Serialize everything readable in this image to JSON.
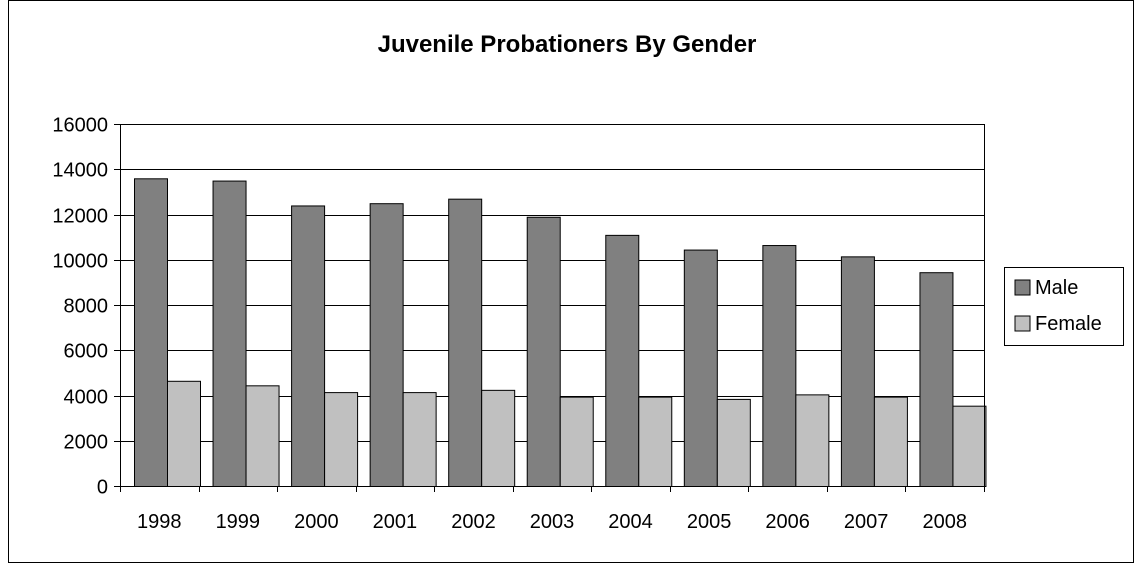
{
  "chart_data": {
    "type": "bar",
    "title": "Juvenile Probationers By Gender",
    "xlabel": "",
    "ylabel": "",
    "categories": [
      "1998",
      "1999",
      "2000",
      "2001",
      "2002",
      "2003",
      "2004",
      "2005",
      "2006",
      "2007",
      "2008"
    ],
    "series": [
      {
        "name": "Male",
        "color": "#808080",
        "values": [
          13600,
          13500,
          12400,
          12500,
          12700,
          11900,
          11100,
          10450,
          10650,
          10150,
          9450
        ]
      },
      {
        "name": "Female",
        "color": "#c0c0c0",
        "values": [
          4650,
          4450,
          4150,
          4150,
          4250,
          3950,
          3950,
          3850,
          4050,
          3950,
          3550
        ]
      }
    ],
    "ylim": [
      0,
      16000
    ],
    "yticks": [
      "0",
      "2000",
      "4000",
      "6000",
      "8000",
      "10000",
      "12000",
      "14000",
      "16000"
    ],
    "grid": true,
    "legend": "right"
  }
}
